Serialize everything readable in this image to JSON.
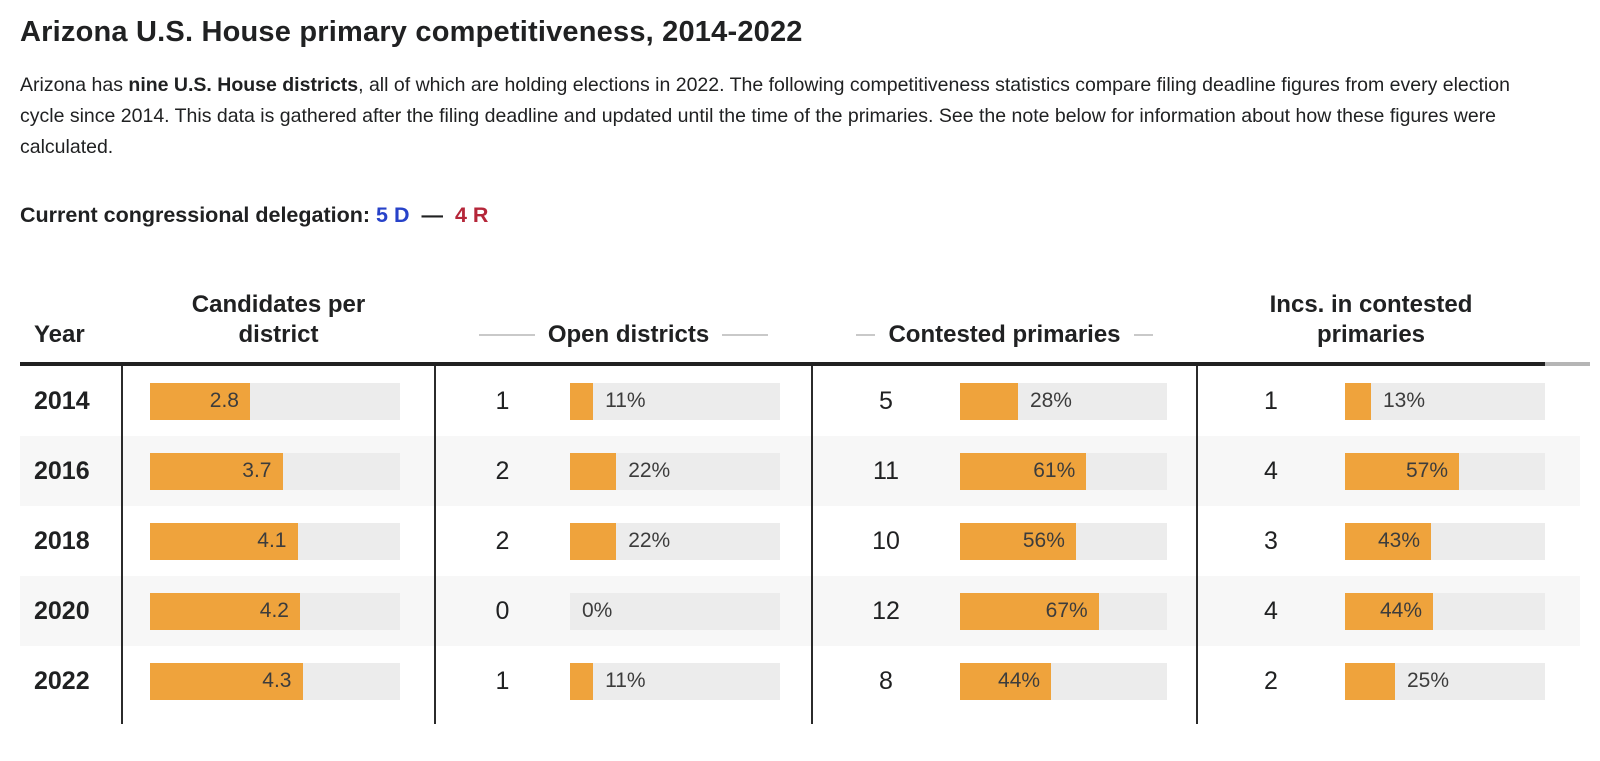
{
  "header": {
    "title": "Arizona U.S. House primary competitiveness, 2014-2022",
    "intro_pre": "Arizona has ",
    "intro_bold": "nine U.S. House districts",
    "intro_post": ", all of which are holding elections in 2022. The following competitiveness statistics compare filing deadline figures from every election cycle since 2014. This data is gathered after the filing deadline and updated until the time of the primaries. See the note below for information about how these figures were calculated.",
    "delegation_label": "Current congressional delegation:",
    "delegation_dem": "5 D",
    "delegation_dash": "—",
    "delegation_rep": "4 R"
  },
  "colors": {
    "accent_orange": "#efa33c",
    "bar_track_gray": "#ececec",
    "alt_row_gray": "#f7f7f7",
    "dem_blue": "#2742c9",
    "rep_red": "#b52639"
  },
  "table": {
    "col_year": "Year",
    "col_candidates": "Candidates per district",
    "col_open": "Open districts",
    "col_contested": "Contested primaries",
    "col_incs": "Incs. in contested primaries",
    "rows": [
      {
        "year": "2014",
        "cpd_label": "2.8",
        "cpd_fill": 40,
        "open_n": "1",
        "open_label": "11%",
        "open_fill": 11,
        "con_n": "5",
        "con_label": "28%",
        "con_fill": 28,
        "inc_n": "1",
        "inc_label": "13%",
        "inc_fill": 13
      },
      {
        "year": "2016",
        "cpd_label": "3.7",
        "cpd_fill": 53,
        "open_n": "2",
        "open_label": "22%",
        "open_fill": 22,
        "con_n": "11",
        "con_label": "61%",
        "con_fill": 61,
        "inc_n": "4",
        "inc_label": "57%",
        "inc_fill": 57
      },
      {
        "year": "2018",
        "cpd_label": "4.1",
        "cpd_fill": 59,
        "open_n": "2",
        "open_label": "22%",
        "open_fill": 22,
        "con_n": "10",
        "con_label": "56%",
        "con_fill": 56,
        "inc_n": "3",
        "inc_label": "43%",
        "inc_fill": 43
      },
      {
        "year": "2020",
        "cpd_label": "4.2",
        "cpd_fill": 60,
        "open_n": "0",
        "open_label": "0%",
        "open_fill": 0,
        "con_n": "12",
        "con_label": "67%",
        "con_fill": 67,
        "inc_n": "4",
        "inc_label": "44%",
        "inc_fill": 44
      },
      {
        "year": "2022",
        "cpd_label": "4.3",
        "cpd_fill": 61,
        "open_n": "1",
        "open_label": "11%",
        "open_fill": 11,
        "con_n": "8",
        "con_label": "44%",
        "con_fill": 44,
        "inc_n": "2",
        "inc_label": "25%",
        "inc_fill": 25
      }
    ]
  },
  "chart_data": {
    "type": "table",
    "title": "Arizona U.S. House primary competitiveness, 2014-2022",
    "categories": [
      "2014",
      "2016",
      "2018",
      "2020",
      "2022"
    ],
    "series": [
      {
        "name": "Candidates per district",
        "values": [
          2.8,
          3.7,
          4.1,
          4.2,
          4.3
        ]
      },
      {
        "name": "Open districts (count)",
        "values": [
          1,
          2,
          2,
          0,
          1
        ]
      },
      {
        "name": "Open districts (%)",
        "values": [
          11,
          22,
          22,
          0,
          11
        ]
      },
      {
        "name": "Contested primaries (count)",
        "values": [
          5,
          11,
          10,
          12,
          8
        ]
      },
      {
        "name": "Contested primaries (%)",
        "values": [
          28,
          61,
          56,
          67,
          44
        ]
      },
      {
        "name": "Incs. in contested primaries (count)",
        "values": [
          1,
          4,
          3,
          4,
          2
        ]
      },
      {
        "name": "Incs. in contested primaries (%)",
        "values": [
          13,
          57,
          43,
          44,
          25
        ]
      }
    ],
    "layout_hints": {
      "bar_style": "horizontal inline bars on gray tracks",
      "candidates_bar_max": 7,
      "pct_bar_max": 100,
      "grid": false,
      "legend": false
    }
  }
}
